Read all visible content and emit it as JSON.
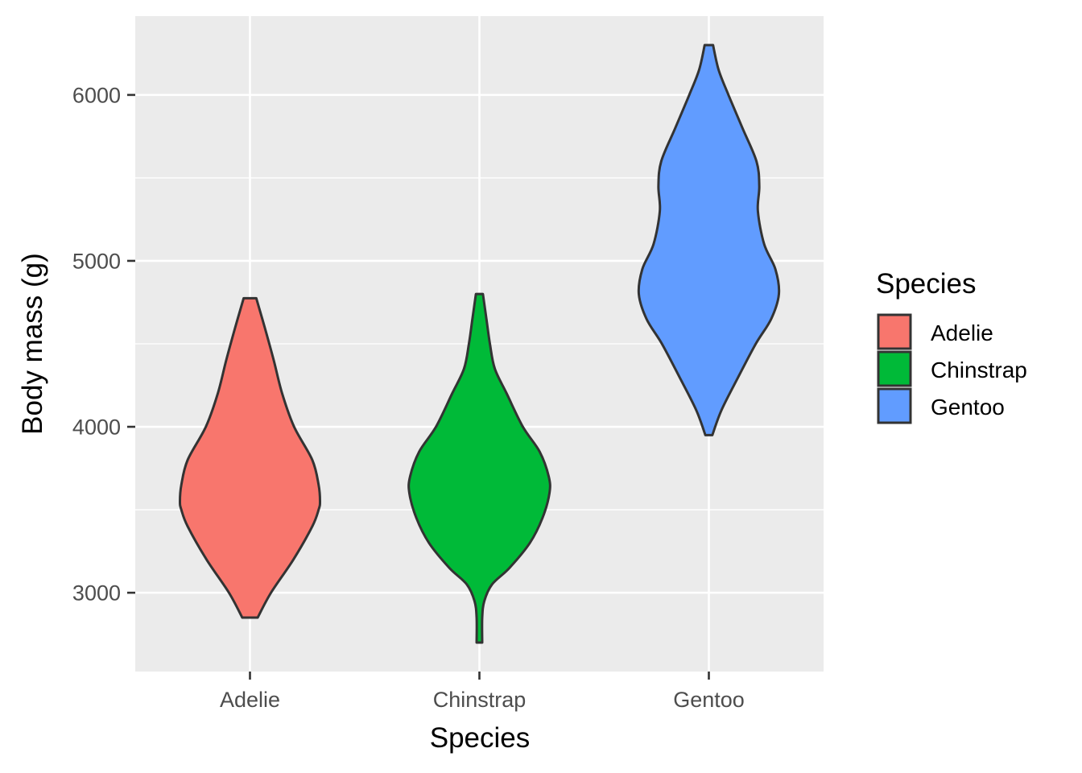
{
  "chart_data": {
    "type": "violin",
    "xlabel": "Species",
    "ylabel": "Body mass (g)",
    "ylim": [
      2525,
      6475
    ],
    "yticks": [
      3000,
      4000,
      5000,
      6000
    ],
    "categories": [
      "Adelie",
      "Chinstrap",
      "Gentoo"
    ],
    "legend": {
      "title": "Species",
      "position": "right",
      "entries": [
        "Adelie",
        "Chinstrap",
        "Gentoo"
      ]
    },
    "series": [
      {
        "name": "Adelie",
        "color": "#F8766D",
        "min": 2850,
        "max": 4775,
        "density_profile": [
          [
            2850,
            0.11
          ],
          [
            3000,
            0.3
          ],
          [
            3200,
            0.62
          ],
          [
            3400,
            0.89
          ],
          [
            3500,
            0.98
          ],
          [
            3550,
            1.0
          ],
          [
            3650,
            0.98
          ],
          [
            3800,
            0.89
          ],
          [
            4000,
            0.63
          ],
          [
            4200,
            0.46
          ],
          [
            4400,
            0.34
          ],
          [
            4600,
            0.21
          ],
          [
            4775,
            0.09
          ]
        ]
      },
      {
        "name": "Chinstrap",
        "color": "#00BA38",
        "min": 2700,
        "max": 4800,
        "density_profile": [
          [
            2700,
            0.04
          ],
          [
            2850,
            0.04
          ],
          [
            2950,
            0.07
          ],
          [
            3050,
            0.18
          ],
          [
            3150,
            0.43
          ],
          [
            3300,
            0.72
          ],
          [
            3450,
            0.9
          ],
          [
            3600,
            1.0
          ],
          [
            3700,
            0.99
          ],
          [
            3850,
            0.86
          ],
          [
            4000,
            0.62
          ],
          [
            4200,
            0.39
          ],
          [
            4350,
            0.22
          ],
          [
            4500,
            0.15
          ],
          [
            4650,
            0.1
          ],
          [
            4800,
            0.05
          ]
        ]
      },
      {
        "name": "Gentoo",
        "color": "#619CFF",
        "min": 3950,
        "max": 6300,
        "density_profile": [
          [
            3950,
            0.05
          ],
          [
            4100,
            0.18
          ],
          [
            4300,
            0.42
          ],
          [
            4500,
            0.67
          ],
          [
            4650,
            0.89
          ],
          [
            4800,
            1.0
          ],
          [
            4950,
            0.95
          ],
          [
            5100,
            0.79
          ],
          [
            5300,
            0.7
          ],
          [
            5450,
            0.72
          ],
          [
            5600,
            0.68
          ],
          [
            5800,
            0.48
          ],
          [
            6000,
            0.28
          ],
          [
            6150,
            0.14
          ],
          [
            6300,
            0.06
          ]
        ]
      }
    ],
    "grid": true,
    "panel_background": "#EBEBEB"
  }
}
